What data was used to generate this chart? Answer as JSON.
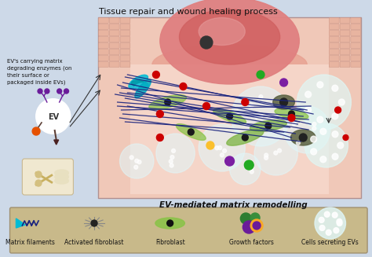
{
  "title": "Tissue repair and wound healing process",
  "subtitle": "EV-mediated matrix remodelling",
  "bg_color": "#cdd9e8",
  "main_bg": "#f2c8c0",
  "legend_bg": "#c8b98a",
  "legend_border": "#a09070",
  "legend_items": [
    "Matrix filaments",
    "Activated fibroblast",
    "Fibroblast",
    "Growth factors",
    "Cells secreting EVs"
  ],
  "ev_label": "EV",
  "left_text": "EV's carrying matrix\ndegrading enzymes (on\ntheir surface or\npackaged inside EVs)"
}
